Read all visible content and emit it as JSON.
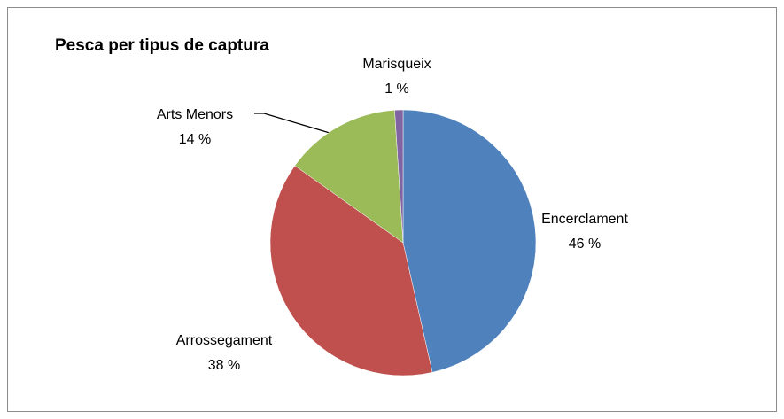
{
  "chart_data": {
    "type": "pie",
    "title": "Pesca per tipus de captura",
    "categories": [
      "Encerclament",
      "Arrossegament",
      "Arts Menors",
      "Marisqueix"
    ],
    "values": [
      46,
      38,
      14,
      1
    ],
    "value_labels": [
      "46 %",
      "38 %",
      "14 %",
      "1 %"
    ],
    "colors": [
      "#4f81bd",
      "#c0504d",
      "#9bbb59",
      "#8064a2"
    ]
  }
}
